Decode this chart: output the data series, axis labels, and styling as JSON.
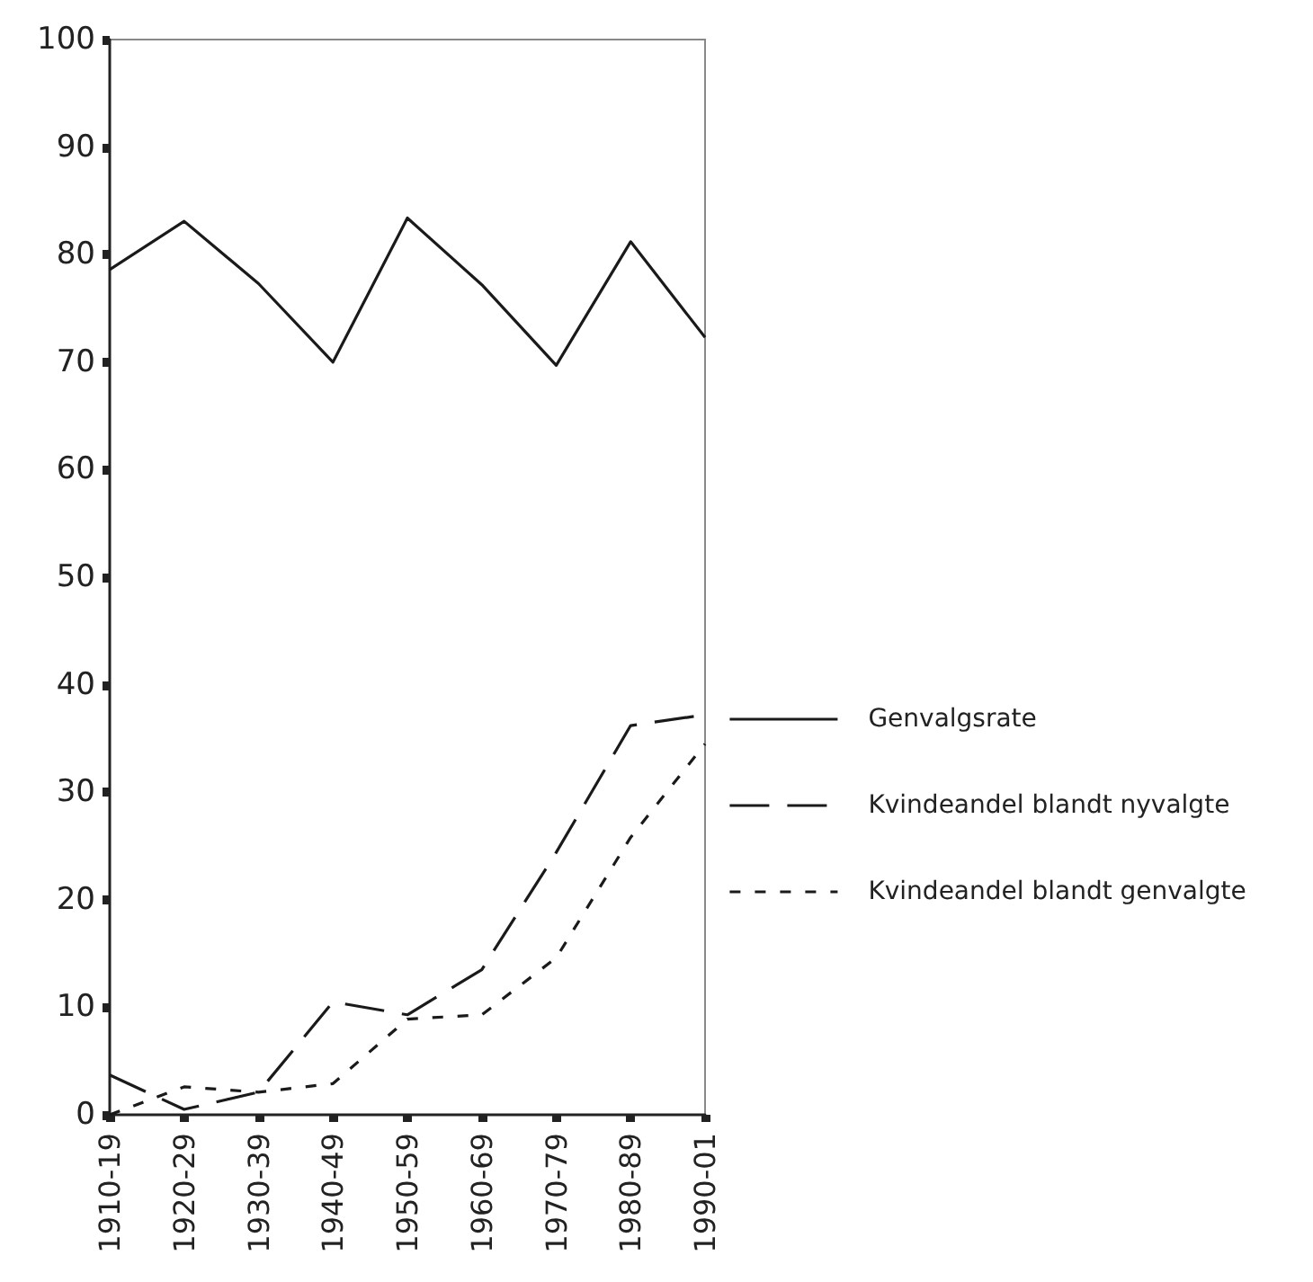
{
  "chart_data": {
    "type": "line",
    "categories": [
      "1910-19",
      "1920-29",
      "1930-39",
      "1940-49",
      "1950-59",
      "1960-69",
      "1970-79",
      "1980-89",
      "1990-01"
    ],
    "series": [
      {
        "name": "Genvalgsrate",
        "color": "#1a1a1a",
        "line_style": "solid",
        "values": [
          78.6,
          83.1,
          77.3,
          70.0,
          83.4,
          77.2,
          69.7,
          81.2,
          72.3
        ]
      },
      {
        "name": "Kvindeandel blandt nyvalgte",
        "color": "#1a1a1a",
        "line_style": "dashed",
        "values": [
          3.7,
          0.5,
          2.1,
          10.5,
          9.3,
          13.5,
          24.4,
          36.2,
          37.2
        ]
      },
      {
        "name": "Kvindeandel blandt genvalgte",
        "color": "#1a1a1a",
        "line_style": "dotted",
        "values": [
          0,
          2.6,
          2.1,
          2.9,
          8.9,
          9.3,
          14.6,
          25.8,
          34.5
        ]
      }
    ],
    "ylim": [
      0,
      100
    ],
    "yticks": [
      0,
      10,
      20,
      30,
      40,
      50,
      60,
      70,
      80,
      90,
      100
    ],
    "grid": false,
    "legend": "right",
    "marker": "none"
  }
}
